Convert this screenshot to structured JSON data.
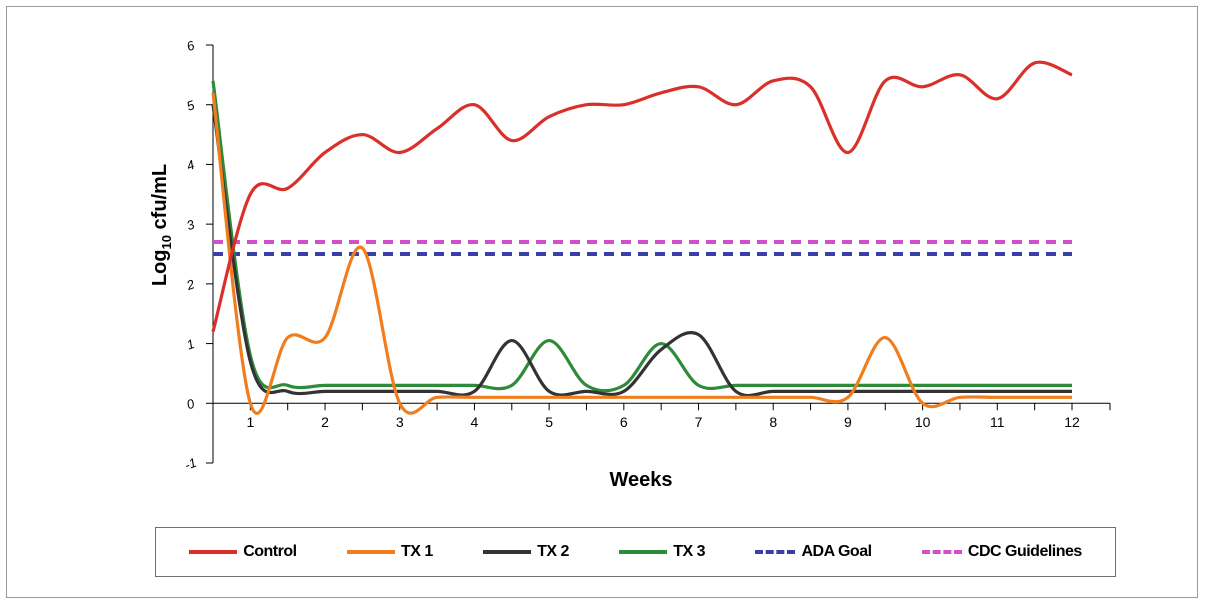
{
  "chart_data": {
    "type": "line",
    "xlabel": "Weeks",
    "ylabel_main": "Log",
    "ylabel_sub": "10",
    "ylabel_rest": " cfu/mL",
    "xlim": [
      0.5,
      12
    ],
    "ylim": [
      -1,
      6
    ],
    "x_ticks": [
      "1",
      "2",
      "3",
      "4",
      "5",
      "6",
      "7",
      "8",
      "9",
      "10",
      "11",
      "12"
    ],
    "y_ticks": [
      "-1",
      "0",
      "1",
      "2",
      "3",
      "4",
      "5",
      "6"
    ],
    "series": [
      {
        "name": "Control",
        "color": "#d9302b",
        "style": "solid",
        "x": [
          0.5,
          1,
          1.5,
          2,
          2.5,
          3,
          3.5,
          4,
          4.5,
          5,
          5.5,
          6,
          6.5,
          7,
          7.5,
          8,
          8.5,
          9,
          9.5,
          10,
          10.5,
          11,
          11.5,
          12
        ],
        "y": [
          1.2,
          3.5,
          3.6,
          4.2,
          4.5,
          4.2,
          4.6,
          5.0,
          4.4,
          4.8,
          5.0,
          5.0,
          5.2,
          5.3,
          5.0,
          5.4,
          5.3,
          4.2,
          5.4,
          5.3,
          5.5,
          5.1,
          5.7,
          5.5
        ]
      },
      {
        "name": "TX 1",
        "color": "#f07d1e",
        "style": "solid",
        "x": [
          0.5,
          1,
          1.5,
          2,
          2.5,
          3,
          3.5,
          4,
          4.5,
          5,
          5.5,
          6,
          6.5,
          7,
          7.5,
          8,
          8.5,
          9,
          9.5,
          10,
          10.5,
          11,
          11.5,
          12
        ],
        "y": [
          5.2,
          0,
          1.1,
          1.1,
          2.6,
          0,
          0.1,
          0.1,
          0.1,
          0.1,
          0.1,
          0.1,
          0.1,
          0.1,
          0.1,
          0.1,
          0.1,
          0.1,
          1.1,
          0,
          0.1,
          0.1,
          0.1,
          0.1
        ]
      },
      {
        "name": "TX 2",
        "color": "#333333",
        "style": "solid",
        "x": [
          0.5,
          1,
          1.5,
          2,
          2.5,
          3,
          3.5,
          4,
          4.5,
          5,
          5.5,
          6,
          6.5,
          7,
          7.5,
          8,
          8.5,
          9,
          9.5,
          10,
          10.5,
          11,
          11.5,
          12
        ],
        "y": [
          5.0,
          0.7,
          0.2,
          0.2,
          0.2,
          0.2,
          0.2,
          0.2,
          1.05,
          0.2,
          0.2,
          0.2,
          0.9,
          1.15,
          0.2,
          0.2,
          0.2,
          0.2,
          0.2,
          0.2,
          0.2,
          0.2,
          0.2,
          0.2
        ]
      },
      {
        "name": "TX 3",
        "color": "#2e8b3a",
        "style": "solid",
        "x": [
          0.5,
          1,
          1.5,
          2,
          2.5,
          3,
          3.5,
          4,
          4.5,
          5,
          5.5,
          6,
          6.5,
          7,
          7.5,
          8,
          8.5,
          9,
          9.5,
          10,
          10.5,
          11,
          11.5,
          12
        ],
        "y": [
          5.4,
          0.8,
          0.3,
          0.3,
          0.3,
          0.3,
          0.3,
          0.3,
          0.3,
          1.05,
          0.3,
          0.3,
          1.0,
          0.3,
          0.3,
          0.3,
          0.3,
          0.3,
          0.3,
          0.3,
          0.3,
          0.3,
          0.3,
          0.3
        ]
      },
      {
        "name": "ADA Goal",
        "color": "#3a3fa8",
        "style": "dashed",
        "x": [
          0.5,
          12
        ],
        "y": [
          2.5,
          2.5
        ]
      },
      {
        "name": "CDC Guidelines",
        "color": "#d24fc8",
        "style": "dashed",
        "x": [
          0.5,
          12
        ],
        "y": [
          2.7,
          2.7
        ]
      }
    ],
    "legend_position": "bottom",
    "grid": false
  }
}
